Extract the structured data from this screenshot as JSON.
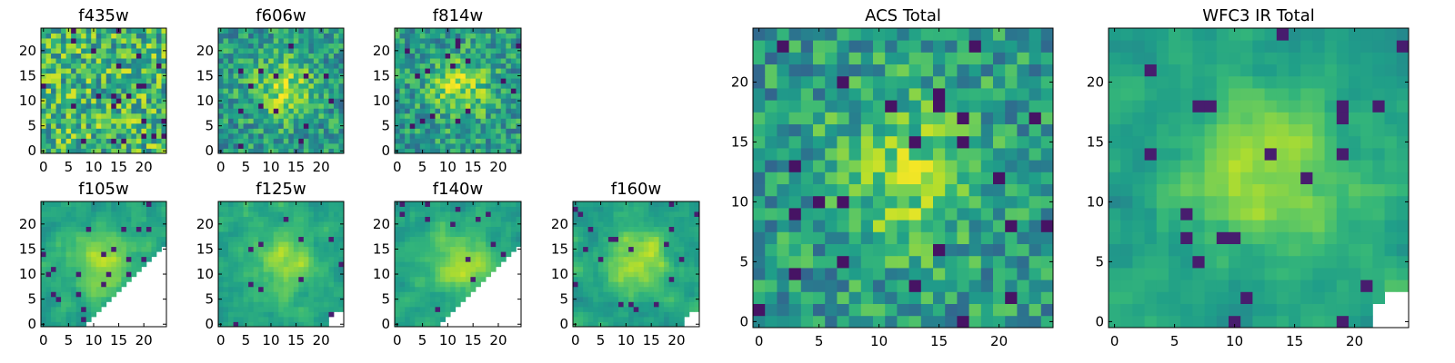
{
  "chart_data": [
    {
      "type": "heatmap",
      "title": "f435w",
      "size": 25,
      "xticks": [
        0,
        5,
        10,
        15,
        20
      ],
      "yticks": [
        0,
        5,
        10,
        15,
        20
      ],
      "xlim": [
        -0.5,
        24.5
      ],
      "ylim": [
        -0.5,
        24.5
      ],
      "colormap": "viridis",
      "pattern": "noise",
      "blank_region": "none"
    },
    {
      "type": "heatmap",
      "title": "f606w",
      "size": 25,
      "xticks": [
        0,
        5,
        10,
        15,
        20
      ],
      "yticks": [
        0,
        5,
        10,
        15,
        20
      ],
      "xlim": [
        -0.5,
        24.5
      ],
      "ylim": [
        -0.5,
        24.5
      ],
      "colormap": "viridis",
      "pattern": "noise-with-central-source",
      "blank_region": "none"
    },
    {
      "type": "heatmap",
      "title": "f814w",
      "size": 25,
      "xticks": [
        0,
        5,
        10,
        15,
        20
      ],
      "yticks": [
        0,
        5,
        10,
        15,
        20
      ],
      "xlim": [
        -0.5,
        24.5
      ],
      "ylim": [
        -0.5,
        24.5
      ],
      "colormap": "viridis",
      "pattern": "noise-with-central-source",
      "blank_region": "none"
    },
    {
      "type": "heatmap",
      "title": "f105w",
      "size": 25,
      "xticks": [
        0,
        5,
        10,
        15,
        20
      ],
      "yticks": [
        0,
        5,
        10,
        15,
        20
      ],
      "xlim": [
        -0.5,
        24.5
      ],
      "ylim": [
        -0.5,
        24.5
      ],
      "colormap": "viridis",
      "pattern": "smooth-central-source",
      "blank_region": "lower-right-triangle"
    },
    {
      "type": "heatmap",
      "title": "f125w",
      "size": 25,
      "xticks": [
        0,
        5,
        10,
        15,
        20
      ],
      "yticks": [
        0,
        5,
        10,
        15,
        20
      ],
      "xlim": [
        -0.5,
        24.5
      ],
      "ylim": [
        -0.5,
        24.5
      ],
      "colormap": "viridis",
      "pattern": "smooth-central-source",
      "blank_region": "lower-right-corner-small"
    },
    {
      "type": "heatmap",
      "title": "f140w",
      "size": 25,
      "xticks": [
        0,
        5,
        10,
        15,
        20
      ],
      "yticks": [
        0,
        5,
        10,
        15,
        20
      ],
      "xlim": [
        -0.5,
        24.5
      ],
      "ylim": [
        -0.5,
        24.5
      ],
      "colormap": "viridis",
      "pattern": "smooth-central-source",
      "blank_region": "lower-right-triangle"
    },
    {
      "type": "heatmap",
      "title": "f160w",
      "size": 25,
      "xticks": [
        0,
        5,
        10,
        15,
        20
      ],
      "yticks": [
        0,
        5,
        10,
        15,
        20
      ],
      "xlim": [
        -0.5,
        24.5
      ],
      "ylim": [
        -0.5,
        24.5
      ],
      "colormap": "viridis",
      "pattern": "smooth-central-source",
      "blank_region": "lower-right-corner-small"
    },
    {
      "type": "heatmap",
      "title": "ACS Total",
      "size": 25,
      "xticks": [
        0,
        5,
        10,
        15,
        20
      ],
      "yticks": [
        0,
        5,
        10,
        15,
        20
      ],
      "xlim": [
        -0.5,
        24.5
      ],
      "ylim": [
        -0.5,
        24.5
      ],
      "colormap": "viridis",
      "pattern": "noise-with-central-source",
      "blank_region": "none"
    },
    {
      "type": "heatmap",
      "title": "WFC3 IR Total",
      "size": 25,
      "xticks": [
        0,
        5,
        10,
        15,
        20
      ],
      "yticks": [
        0,
        5,
        10,
        15,
        20
      ],
      "xlim": [
        -0.5,
        24.5
      ],
      "ylim": [
        -0.5,
        24.5
      ],
      "colormap": "viridis",
      "pattern": "smooth-central-source",
      "blank_region": "lower-right-corner-small"
    }
  ]
}
